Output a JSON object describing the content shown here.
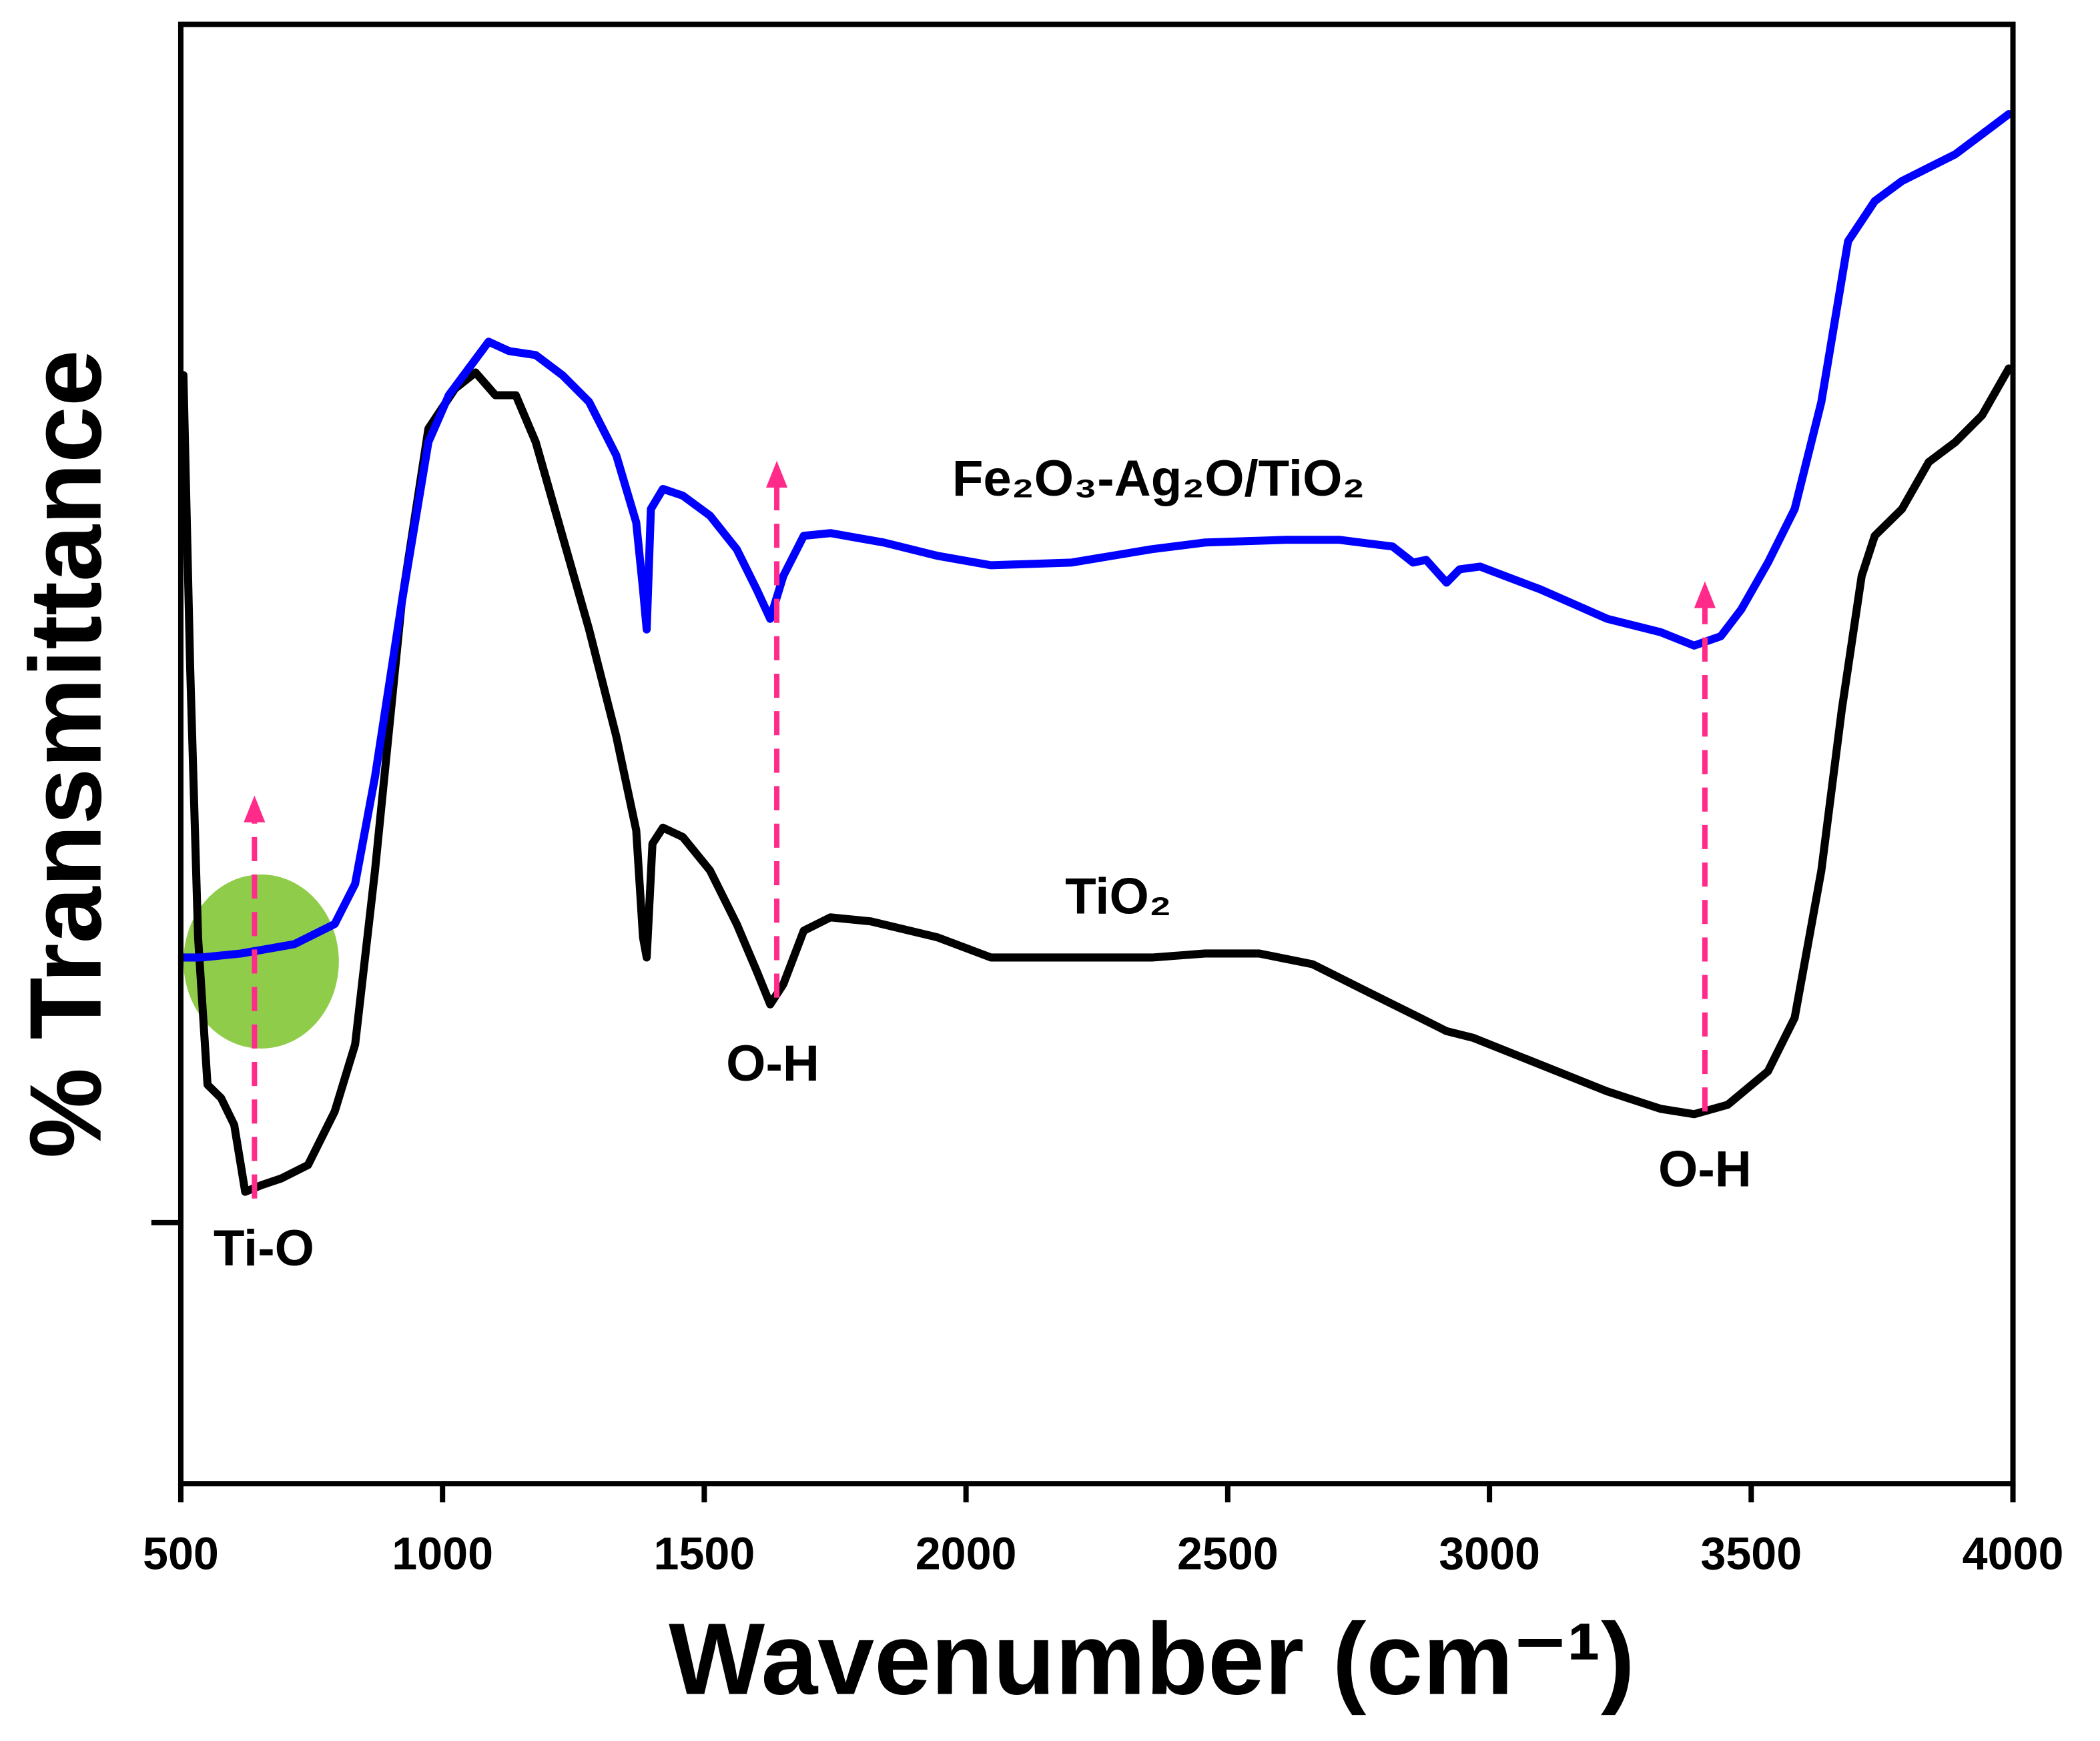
{
  "chart_data": {
    "type": "line",
    "xlabel": "Wavenumber (cm⁻¹)",
    "ylabel": "% Transmittance",
    "xlim": [
      500,
      4000
    ],
    "xticks": [
      500,
      1000,
      1500,
      2000,
      2500,
      3000,
      3500,
      4000
    ],
    "ylim": [
      0,
      109
    ],
    "yticks": [
      19.5
    ],
    "annotations": [
      "Ti-O",
      "O-H",
      "O-H"
    ],
    "series": [
      {
        "name": "TiO₂",
        "color": "#000000",
        "x": [
          505,
          518,
          533,
          551,
          577,
          602,
          623,
          654,
          692,
          743,
          794,
          833,
          871,
          922,
          973,
          1024,
          1063,
          1101,
          1140,
          1178,
          1229,
          1280,
          1332,
          1370,
          1383,
          1390,
          1401,
          1421,
          1459,
          1511,
          1562,
          1600,
          1626,
          1651,
          1690,
          1741,
          1818,
          1946,
          2048,
          2201,
          2355,
          2457,
          2560,
          2662,
          2764,
          2867,
          2918,
          2969,
          3097,
          3225,
          3327,
          3391,
          3455,
          3532,
          3583,
          3634,
          3673,
          3711,
          3736,
          3788,
          3839,
          3890,
          3941,
          3992
        ],
        "values": [
          82.8,
          60.8,
          40.8,
          29.8,
          28.8,
          26.8,
          21.8,
          22.3,
          22.8,
          23.8,
          27.8,
          32.8,
          45.8,
          65.8,
          78.8,
          81.8,
          83,
          81.3,
          81.3,
          77.8,
          70.8,
          63.8,
          55.8,
          48.8,
          40.8,
          39.3,
          47.8,
          49,
          48.3,
          45.8,
          41.8,
          38.3,
          35.8,
          37.3,
          41.3,
          42.3,
          42,
          40.8,
          39.3,
          39.3,
          39.3,
          39.6,
          39.6,
          38.8,
          36.8,
          34.8,
          33.8,
          33.3,
          31.3,
          29.3,
          28,
          27.6,
          28.3,
          30.8,
          34.8,
          45.8,
          57.8,
          67.8,
          70.8,
          72.8,
          76.3,
          77.8,
          79.8,
          83.3
        ]
      },
      {
        "name": "Fe₂O₃-Ag₂O/TiO₂",
        "color": "#0000ff",
        "x": [
          505,
          538,
          615,
          717,
          794,
          833,
          871,
          922,
          973,
          1012,
          1050,
          1088,
          1127,
          1178,
          1229,
          1280,
          1332,
          1370,
          1383,
          1390,
          1398,
          1421,
          1459,
          1511,
          1562,
          1600,
          1626,
          1651,
          1690,
          1741,
          1843,
          1946,
          2048,
          2201,
          2355,
          2457,
          2611,
          2713,
          2815,
          2854,
          2879,
          2918,
          2943,
          2982,
          3097,
          3225,
          3327,
          3391,
          3442,
          3481,
          3532,
          3583,
          3634,
          3685,
          3736,
          3788,
          3839,
          3890,
          3941,
          3992
        ],
        "values": [
          39.3,
          39.3,
          39.6,
          40.3,
          41.8,
          44.8,
          52.8,
          65.8,
          77.8,
          81.3,
          83.3,
          85.3,
          84.6,
          84.3,
          82.8,
          80.8,
          76.8,
          71.8,
          66.8,
          63.8,
          72.8,
          74.3,
          73.8,
          72.3,
          69.8,
          66.8,
          64.6,
          67.8,
          70.8,
          71,
          70.3,
          69.3,
          68.6,
          68.8,
          69.8,
          70.3,
          70.5,
          70.5,
          70,
          68.8,
          69,
          67.3,
          68.3,
          68.5,
          66.8,
          64.6,
          63.6,
          62.6,
          63.3,
          65.3,
          68.8,
          72.8,
          80.8,
          92.8,
          95.8,
          97.3,
          98.3,
          99.3,
          100.8,
          102.3
        ]
      }
    ]
  }
}
